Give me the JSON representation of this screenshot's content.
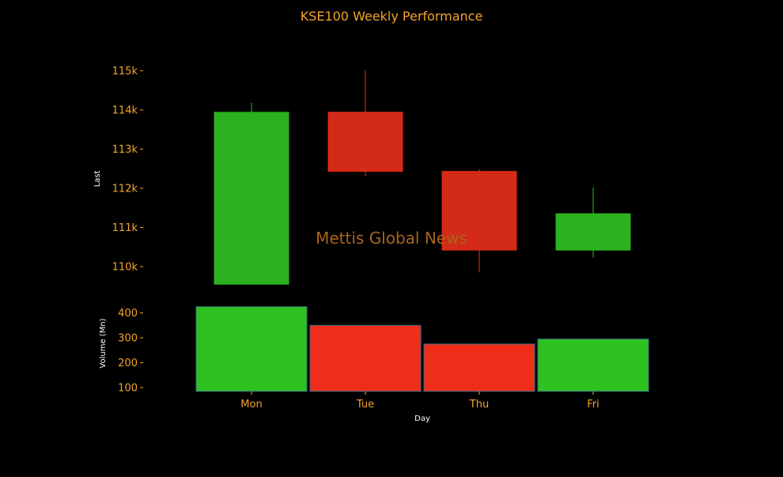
{
  "colors": {
    "background": "#000000",
    "accent": "#f5a32a",
    "label": "#ffffff",
    "up": "#2dc21f",
    "up_body": "#2ab11d",
    "down": "#ee2e1a",
    "down_body": "#d42a18",
    "watermark": "#a8651c"
  },
  "chart_data": [
    {
      "type": "candlestick",
      "title": "KSE100 Weekly Performance",
      "ylabel": "Last",
      "ylim": [
        109500,
        115000
      ],
      "yticks": [
        110000,
        111000,
        112000,
        113000,
        114000,
        115000
      ],
      "ytick_labels": [
        "110k",
        "111k",
        "112k",
        "113k",
        "114k",
        "115k"
      ],
      "categories": [
        "Mon",
        "Tue",
        "Thu",
        "Fri"
      ],
      "candles": [
        {
          "day": "Mon",
          "open": 109550,
          "high": 114180,
          "low": 109550,
          "close": 113940,
          "direction": "up"
        },
        {
          "day": "Tue",
          "open": 113940,
          "high": 115020,
          "low": 112300,
          "close": 112430,
          "direction": "down"
        },
        {
          "day": "Thu",
          "open": 112430,
          "high": 112480,
          "low": 109850,
          "close": 110420,
          "direction": "down"
        },
        {
          "day": "Fri",
          "open": 110420,
          "high": 112020,
          "low": 110230,
          "close": 111350,
          "direction": "up"
        }
      ]
    },
    {
      "type": "bar",
      "ylabel": "Volume (Mn)",
      "xlabel": "Day",
      "ylim": [
        85,
        435
      ],
      "yticks": [
        100,
        200,
        300,
        400
      ],
      "ytick_labels": [
        "100",
        "200",
        "300",
        "400"
      ],
      "categories": [
        "Mon",
        "Tue",
        "Thu",
        "Fri"
      ],
      "values": [
        425,
        350,
        275,
        295
      ],
      "directions": [
        "up",
        "down",
        "down",
        "up"
      ]
    }
  ],
  "watermark": "Mettis Global News"
}
